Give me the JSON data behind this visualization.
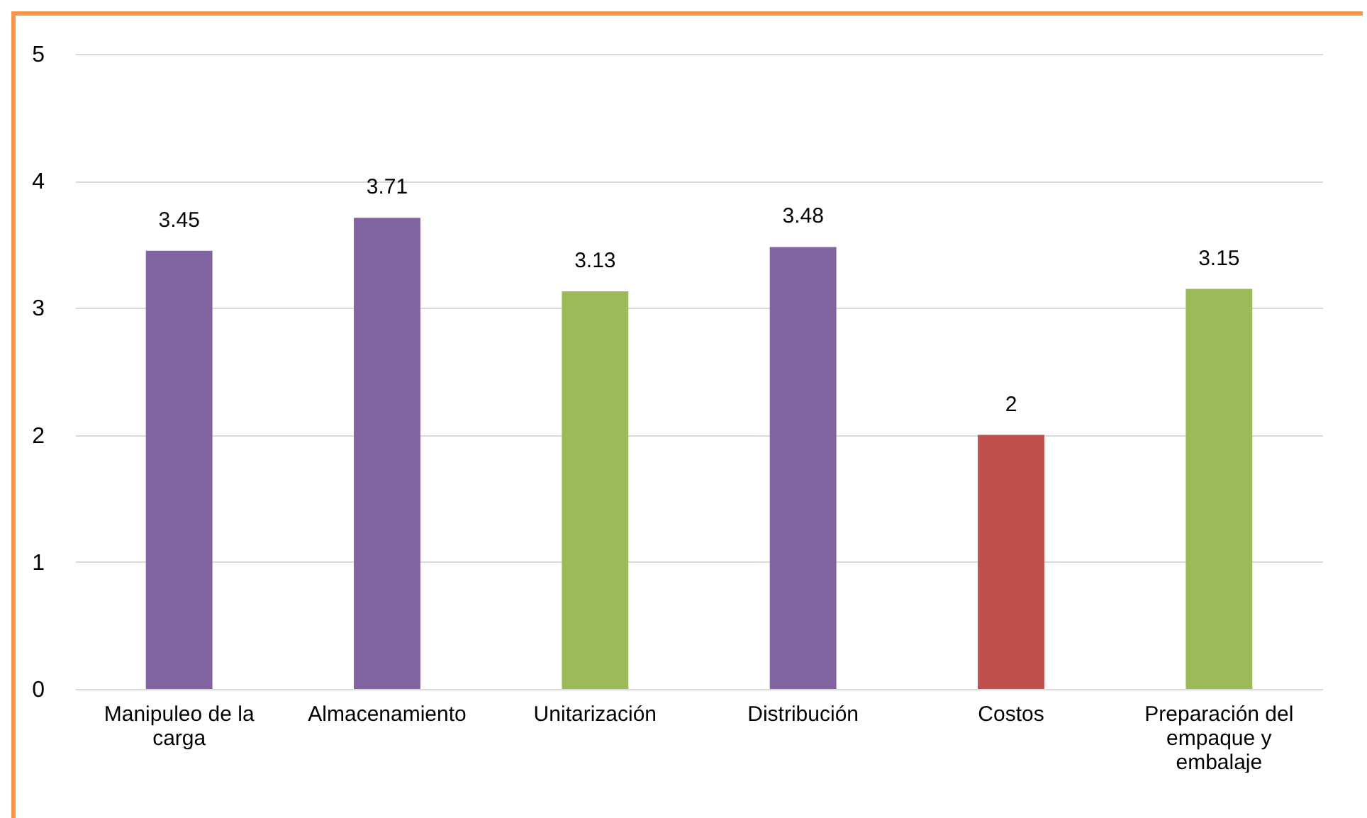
{
  "chart_data": {
    "type": "bar",
    "categories": [
      "Manipuleo de la carga",
      "Almacenamiento",
      "Unitarización",
      "Distribución",
      "Costos",
      "Preparación del empaque y embalaje"
    ],
    "values": [
      3.45,
      3.71,
      3.13,
      3.48,
      2,
      3.15
    ],
    "colors": [
      "#8064a2",
      "#8064a2",
      "#9bbb59",
      "#8064a2",
      "#c0504d",
      "#9bbb59"
    ],
    "ylim": [
      0,
      5
    ],
    "yticks": [
      0,
      1,
      2,
      3,
      4,
      5
    ],
    "grid": "y",
    "data_labels": true
  }
}
